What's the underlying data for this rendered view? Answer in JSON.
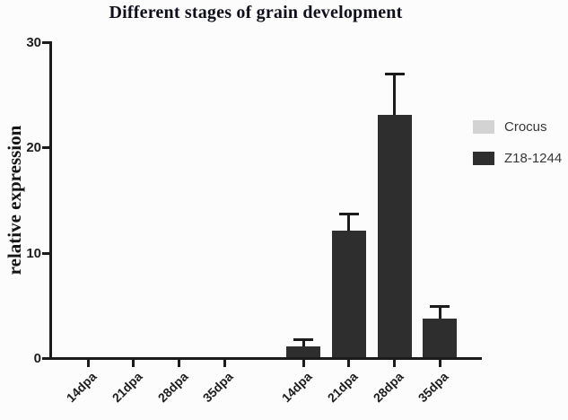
{
  "title": "Different stages of grain development",
  "axes": {
    "ylabel": "relative expression",
    "y_tick_labels": [
      "0",
      "10",
      "20",
      "30"
    ],
    "x_tick_labels": [
      "14dpa",
      "21dpa",
      "28dpa",
      "35dpa",
      "14dpa",
      "21dpa",
      "28dpa",
      "35dpa"
    ]
  },
  "legend": [
    {
      "label": "Crocus",
      "color": "#d3d3d3"
    },
    {
      "label": "Z18-1244",
      "color": "#2e2e2e"
    }
  ],
  "colors": {
    "axis": "#1b1b1b",
    "bar_dark": "#2e2e2e",
    "bar_light": "#d3d3d3",
    "background": "#fcfcfc"
  },
  "chart_data": {
    "type": "bar",
    "title": "Different stages of grain development",
    "xlabel": "",
    "ylabel": "relative expression",
    "ylim": [
      0,
      30
    ],
    "y_ticks": [
      0,
      10,
      20,
      30
    ],
    "categories": [
      "14dpa",
      "21dpa",
      "28dpa",
      "35dpa"
    ],
    "series": [
      {
        "name": "Crocus",
        "color": "#d3d3d3",
        "values": [
          0,
          0,
          0,
          0
        ],
        "errors": [
          0,
          0,
          0,
          0
        ]
      },
      {
        "name": "Z18-1244",
        "color": "#2e2e2e",
        "values": [
          1.0,
          12.0,
          23.0,
          3.7
        ],
        "errors": [
          0.75,
          1.7,
          4.0,
          1.25
        ]
      }
    ],
    "layout_note": "two side-by-side category groups, one per series; error bars upward only",
    "legend_position": "right",
    "grid": false
  }
}
